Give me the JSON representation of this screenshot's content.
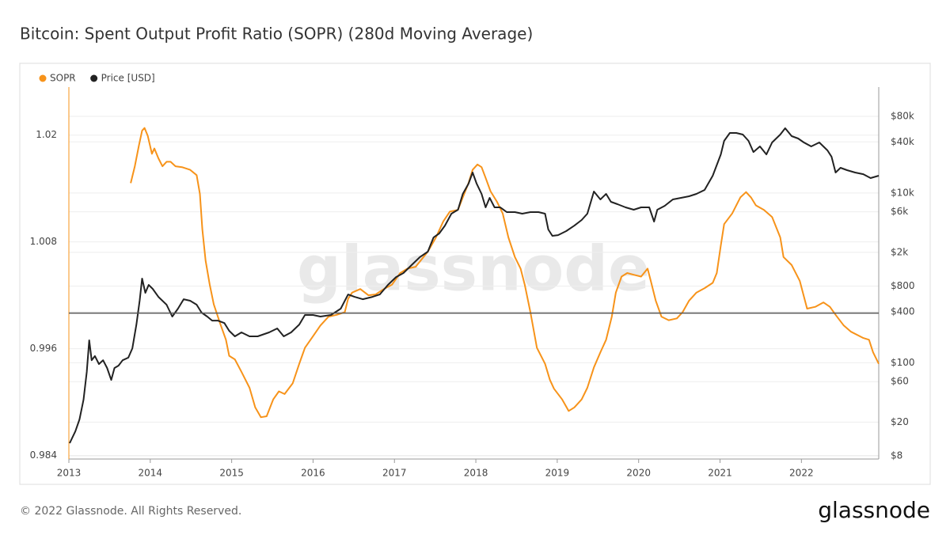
{
  "chart_data": {
    "type": "line",
    "title": "Bitcoin: Spent Output Profit Ratio (SOPR) (280d Moving Average)",
    "watermark": "glassnode",
    "xlim": [
      2013,
      2022.95
    ],
    "xticks": [
      2013,
      2014,
      2015,
      2016,
      2017,
      2018,
      2019,
      2020,
      2021,
      2022
    ],
    "ylim": [
      0.9836,
      1.0254
    ],
    "yticks": [
      0.984,
      0.996,
      1.008,
      1.02
    ],
    "y2lim": [
      7.35,
      177000
    ],
    "y2log": true,
    "y2ticks": [
      {
        "value": 8,
        "label": "$8"
      },
      {
        "value": 20,
        "label": "$20"
      },
      {
        "value": 60,
        "label": "$60"
      },
      {
        "value": 100,
        "label": "$100"
      },
      {
        "value": 400,
        "label": "$400"
      },
      {
        "value": 800,
        "label": "$800"
      },
      {
        "value": 2000,
        "label": "$2k"
      },
      {
        "value": 6000,
        "label": "$6k"
      },
      {
        "value": 10000,
        "label": "$10k"
      },
      {
        "value": 40000,
        "label": "$40k"
      },
      {
        "value": 80000,
        "label": "$80k"
      }
    ],
    "reference_line": 1,
    "grid": true,
    "legend": "top-left",
    "series": [
      {
        "name": "SOPR",
        "color": "#f7931a",
        "axis": "y",
        "x": [
          2013.76,
          2013.81,
          2013.86,
          2013.9,
          2013.93,
          2013.97,
          2014.02,
          2014.05,
          2014.1,
          2014.15,
          2014.2,
          2014.25,
          2014.31,
          2014.39,
          2014.49,
          2014.57,
          2014.61,
          2014.64,
          2014.68,
          2014.73,
          2014.78,
          2014.86,
          2014.93,
          2014.97,
          2015.04,
          2015.12,
          2015.22,
          2015.29,
          2015.36,
          2015.43,
          2015.51,
          2015.58,
          2015.65,
          2015.75,
          2015.83,
          2015.9,
          2016.0,
          2016.09,
          2016.19,
          2016.29,
          2016.39,
          2016.43,
          2016.48,
          2016.58,
          2016.68,
          2016.77,
          2016.87,
          2016.97,
          2017.07,
          2017.16,
          2017.26,
          2017.41,
          2017.51,
          2017.6,
          2017.68,
          2017.78,
          2017.84,
          2017.91,
          2017.96,
          2018.02,
          2018.07,
          2018.12,
          2018.18,
          2018.26,
          2018.33,
          2018.4,
          2018.48,
          2018.55,
          2018.6,
          2018.67,
          2018.75,
          2018.85,
          2018.91,
          2018.96,
          2019.06,
          2019.14,
          2019.21,
          2019.3,
          2019.37,
          2019.45,
          2019.53,
          2019.6,
          2019.67,
          2019.72,
          2019.79,
          2019.86,
          2019.94,
          2020.03,
          2020.11,
          2020.15,
          2020.21,
          2020.28,
          2020.37,
          2020.47,
          2020.54,
          2020.62,
          2020.71,
          2020.81,
          2020.91,
          2020.96,
          2021.01,
          2021.05,
          2021.15,
          2021.25,
          2021.32,
          2021.38,
          2021.44,
          2021.54,
          2021.64,
          2021.74,
          2021.78,
          2021.88,
          2021.98,
          2022.07,
          2022.17,
          2022.27,
          2022.35,
          2022.42,
          2022.52,
          2022.61,
          2022.76,
          2022.83,
          2022.88,
          2022.95
        ],
        "values": [
          1.0146,
          1.0165,
          1.0188,
          1.0205,
          1.0208,
          1.0199,
          1.0179,
          1.0185,
          1.0174,
          1.0165,
          1.017,
          1.017,
          1.0165,
          1.0164,
          1.0161,
          1.0155,
          1.0134,
          1.0094,
          1.0059,
          1.0032,
          1.001,
          0.9988,
          0.997,
          0.9952,
          0.9948,
          0.9934,
          0.9916,
          0.9894,
          0.9883,
          0.9884,
          0.9903,
          0.9912,
          0.9909,
          0.9921,
          0.9943,
          0.9961,
          0.9974,
          0.9986,
          0.9996,
          0.9998,
          1.0001,
          1.0016,
          1.0023,
          1.0027,
          1.002,
          1.0021,
          1.0027,
          1.0032,
          1.0045,
          1.005,
          1.0052,
          1.0069,
          1.0085,
          1.0103,
          1.0114,
          1.0116,
          1.013,
          1.0146,
          1.0161,
          1.0167,
          1.0164,
          1.0152,
          1.0137,
          1.0125,
          1.0112,
          1.0085,
          1.0063,
          1.005,
          1.0032,
          1.0001,
          0.9961,
          0.9943,
          0.9925,
          0.9915,
          0.9903,
          0.989,
          0.9894,
          0.9903,
          0.9916,
          0.9939,
          0.9956,
          0.997,
          0.9996,
          1.0023,
          1.0041,
          1.0045,
          1.0043,
          1.0041,
          1.005,
          1.0036,
          1.0014,
          0.9996,
          0.9992,
          0.9994,
          1.0001,
          1.0014,
          1.0023,
          1.0028,
          1.0034,
          1.0045,
          1.0076,
          1.01,
          1.0112,
          1.013,
          1.0136,
          1.013,
          1.0121,
          1.0116,
          1.0108,
          1.0085,
          1.0063,
          1.0054,
          1.0036,
          1.0005,
          1.0007,
          1.0012,
          1.0007,
          0.9998,
          0.9986,
          0.9979,
          0.9972,
          0.997,
          0.9956,
          0.9943
        ]
      },
      {
        "name": "Price [USD]",
        "color": "#222222",
        "axis": "y2",
        "x": [
          2013.01,
          2013.08,
          2013.13,
          2013.18,
          2013.22,
          2013.25,
          2013.28,
          2013.32,
          2013.37,
          2013.42,
          2013.47,
          2013.52,
          2013.56,
          2013.61,
          2013.66,
          2013.73,
          2013.78,
          2013.83,
          2013.87,
          2013.9,
          2013.94,
          2013.98,
          2014.03,
          2014.1,
          2014.2,
          2014.27,
          2014.34,
          2014.41,
          2014.49,
          2014.57,
          2014.63,
          2014.7,
          2014.76,
          2014.83,
          2014.91,
          2014.97,
          2015.04,
          2015.12,
          2015.22,
          2015.32,
          2015.46,
          2015.56,
          2015.64,
          2015.73,
          2015.83,
          2015.9,
          2016.0,
          2016.09,
          2016.22,
          2016.34,
          2016.43,
          2016.51,
          2016.61,
          2016.73,
          2016.82,
          2016.92,
          2017.02,
          2017.11,
          2017.21,
          2017.31,
          2017.41,
          2017.48,
          2017.55,
          2017.62,
          2017.7,
          2017.78,
          2017.84,
          2017.91,
          2017.96,
          2018.01,
          2018.07,
          2018.12,
          2018.17,
          2018.23,
          2018.3,
          2018.38,
          2018.48,
          2018.57,
          2018.67,
          2018.77,
          2018.85,
          2018.89,
          2018.94,
          2019.01,
          2019.11,
          2019.21,
          2019.3,
          2019.37,
          2019.45,
          2019.53,
          2019.6,
          2019.66,
          2019.74,
          2019.84,
          2019.94,
          2020.03,
          2020.13,
          2020.19,
          2020.23,
          2020.32,
          2020.42,
          2020.52,
          2020.62,
          2020.71,
          2020.81,
          2020.91,
          2021.01,
          2021.05,
          2021.12,
          2021.2,
          2021.28,
          2021.35,
          2021.41,
          2021.49,
          2021.57,
          2021.64,
          2021.74,
          2021.8,
          2021.88,
          2021.96,
          2022.03,
          2022.12,
          2022.22,
          2022.32,
          2022.37,
          2022.42,
          2022.48,
          2022.56,
          2022.66,
          2022.76,
          2022.85,
          2022.95
        ],
        "values": [
          11.3,
          15.6,
          21.5,
          36.7,
          77.9,
          184,
          107,
          120,
          96.6,
          107,
          86.7,
          62.8,
          86.7,
          92.5,
          107,
          115,
          148,
          282,
          538,
          981,
          667,
          826,
          742,
          598,
          483,
          350,
          434,
          561,
          538,
          483,
          390,
          350,
          314,
          314,
          294,
          238,
          205,
          228,
          205,
          205,
          228,
          254,
          205,
          228,
          282,
          366,
          366,
          350,
          366,
          434,
          638,
          598,
          561,
          598,
          638,
          826,
          1023,
          1140,
          1413,
          1750,
          2037,
          2993,
          3334,
          4130,
          5702,
          6353,
          9750,
          12880,
          17420,
          12880,
          9750,
          6776,
          8770,
          6776,
          6776,
          5957,
          5957,
          5702,
          5957,
          5957,
          5702,
          3715,
          3126,
          3192,
          3556,
          4130,
          4808,
          5702,
          10400,
          8395,
          9750,
          7870,
          7380,
          6776,
          6353,
          6776,
          6776,
          4603,
          6353,
          7063,
          8395,
          8770,
          9141,
          9750,
          10860,
          15990,
          28510,
          41110,
          50930,
          50930,
          48850,
          41110,
          30410,
          35400,
          28510,
          39360,
          48850,
          57940,
          46770,
          43850,
          39360,
          35400,
          39360,
          31770,
          26730,
          17420,
          19820,
          18580,
          17420,
          16670,
          15000,
          15990
        ]
      }
    ]
  },
  "footer": {
    "copyright": "© 2022 Glassnode. All Rights Reserved.",
    "logo": "glassnode"
  }
}
